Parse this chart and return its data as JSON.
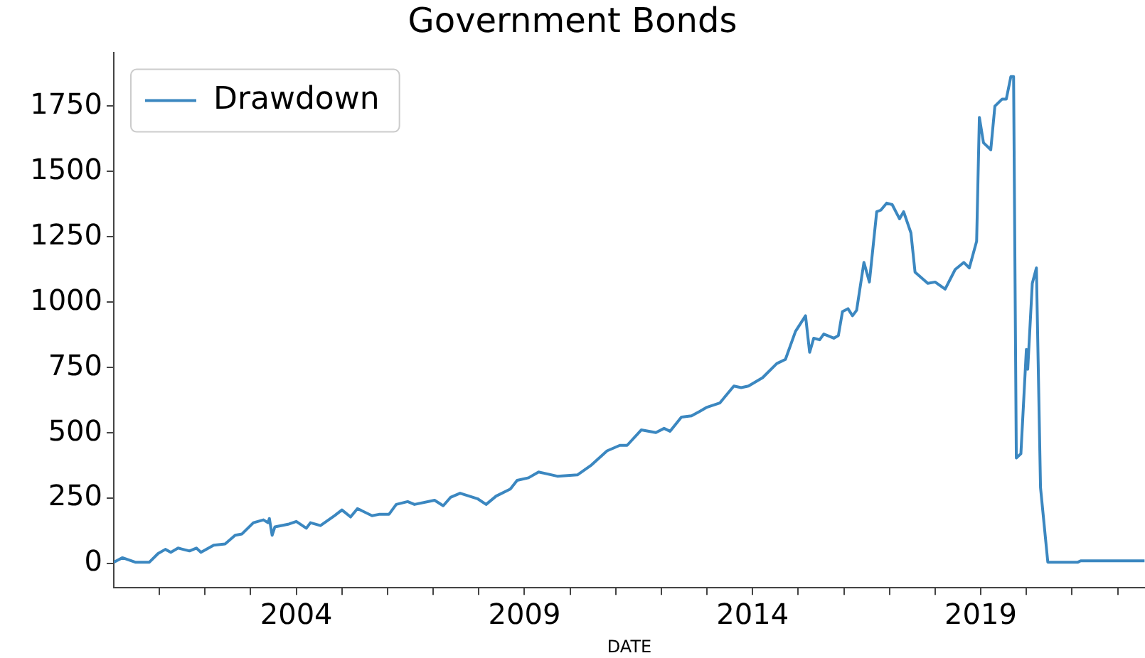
{
  "chart_data": {
    "type": "line",
    "title": "Government Bonds",
    "xlabel": "DATE",
    "legend": "top left",
    "grid": false,
    "xlim": [
      2000,
      2022.6
    ],
    "ylim": [
      -93,
      1956
    ],
    "xticks": [
      {
        "value": 2001,
        "label": null
      },
      {
        "value": 2002,
        "label": null
      },
      {
        "value": 2003,
        "label": null
      },
      2004,
      {
        "value": 2005,
        "label": null
      },
      {
        "value": 2006,
        "label": null
      },
      {
        "value": 2007,
        "label": null
      },
      {
        "value": 2008,
        "label": null
      },
      2009,
      {
        "value": 2010,
        "label": null
      },
      {
        "value": 2011,
        "label": null
      },
      {
        "value": 2012,
        "label": null
      },
      {
        "value": 2013,
        "label": null
      },
      2014,
      {
        "value": 2015,
        "label": null
      },
      {
        "value": 2016,
        "label": null
      },
      {
        "value": 2017,
        "label": null
      },
      {
        "value": 2018,
        "label": null
      },
      2019,
      {
        "value": 2020,
        "label": null
      },
      {
        "value": 2021,
        "label": null
      },
      {
        "value": 2022,
        "label": null
      }
    ],
    "yticks": [
      0,
      250,
      500,
      750,
      1000,
      1250,
      1500,
      1750
    ],
    "series": [
      {
        "name": "Drawdown",
        "color": "#3b87c0",
        "x": [
          2000.0,
          2000.19,
          2000.47,
          2000.78,
          2000.97,
          2001.13,
          2001.25,
          2001.41,
          2001.66,
          2001.81,
          2001.91,
          2002.19,
          2002.44,
          2002.66,
          2002.81,
          2003.06,
          2003.28,
          2003.38,
          2003.41,
          2003.47,
          2003.53,
          2003.84,
          2004.0,
          2004.22,
          2004.31,
          2004.53,
          2004.84,
          2005.0,
          2005.19,
          2005.34,
          2005.66,
          2005.81,
          2006.03,
          2006.19,
          2006.44,
          2006.59,
          2007.03,
          2007.22,
          2007.38,
          2007.59,
          2007.97,
          2008.16,
          2008.38,
          2008.69,
          2008.84,
          2009.09,
          2009.31,
          2009.72,
          2010.16,
          2010.47,
          2010.81,
          2011.09,
          2011.25,
          2011.56,
          2011.88,
          2012.06,
          2012.19,
          2012.44,
          2012.66,
          2012.84,
          2013.0,
          2013.28,
          2013.59,
          2013.75,
          2013.91,
          2014.22,
          2014.53,
          2014.72,
          2014.94,
          2015.16,
          2015.25,
          2015.34,
          2015.47,
          2015.56,
          2015.78,
          2015.88,
          2015.97,
          2016.09,
          2016.19,
          2016.28,
          2016.44,
          2016.56,
          2016.72,
          2016.81,
          2016.94,
          2017.06,
          2017.22,
          2017.31,
          2017.47,
          2017.56,
          2017.84,
          2018.0,
          2018.22,
          2018.44,
          2018.63,
          2018.75,
          2018.91,
          2018.97,
          2019.06,
          2019.22,
          2019.31,
          2019.47,
          2019.56,
          2019.66,
          2019.72,
          2019.78,
          2019.88,
          2020.0,
          2020.03,
          2020.13,
          2020.22,
          2020.31,
          2020.47,
          2021.13,
          2021.19,
          2022.59
        ],
        "values": [
          5,
          22,
          5,
          5,
          38,
          54,
          43,
          59,
          48,
          59,
          43,
          70,
          75,
          108,
          113,
          156,
          167,
          156,
          172,
          108,
          140,
          151,
          161,
          135,
          156,
          145,
          183,
          205,
          178,
          210,
          183,
          188,
          188,
          226,
          237,
          226,
          242,
          221,
          253,
          269,
          248,
          226,
          258,
          285,
          318,
          328,
          350,
          334,
          339,
          377,
          431,
          452,
          452,
          511,
          501,
          517,
          506,
          560,
          565,
          582,
          598,
          614,
          679,
          673,
          679,
          711,
          765,
          781,
          888,
          948,
          808,
          862,
          856,
          878,
          862,
          872,
          964,
          975,
          948,
          969,
          1152,
          1077,
          1346,
          1352,
          1379,
          1373,
          1319,
          1346,
          1265,
          1115,
          1072,
          1077,
          1050,
          1125,
          1152,
          1131,
          1233,
          1707,
          1610,
          1583,
          1750,
          1777,
          1777,
          1863,
          1863,
          404,
          420,
          819,
          743,
          1072,
          1131,
          291,
          5,
          5,
          10,
          10
        ]
      }
    ]
  }
}
